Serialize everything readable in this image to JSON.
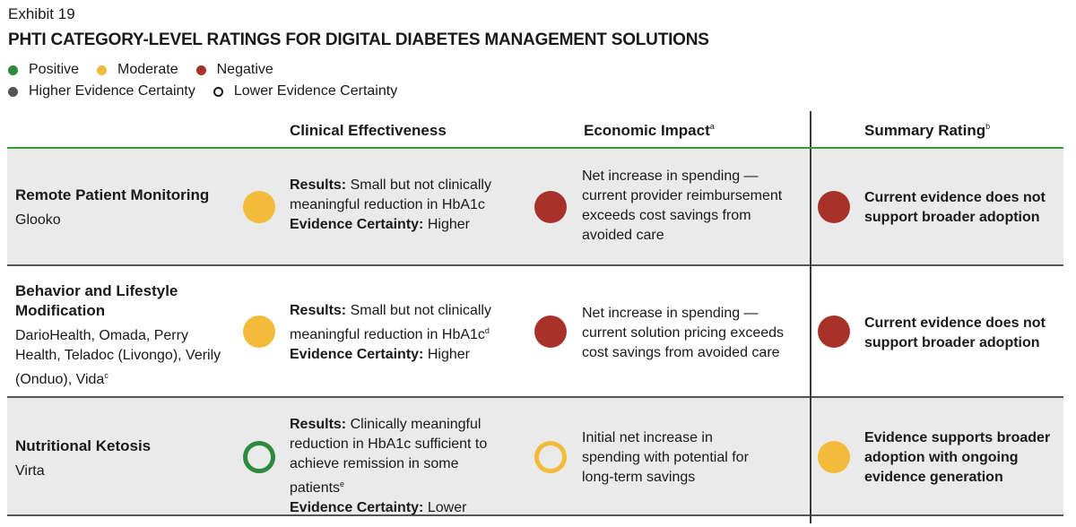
{
  "exhibit": "Exhibit 19",
  "title": "PHTI CATEGORY-LEVEL RATINGS FOR DIGITAL DIABETES MANAGEMENT SOLUTIONS",
  "legend": {
    "positive": "Positive",
    "moderate": "Moderate",
    "negative": "Negative",
    "higher": "Higher Evidence Certainty",
    "lower": "Lower Evidence Certainty"
  },
  "colors": {
    "positive": "#2e8b3e",
    "moderate": "#f2bc3a",
    "negative": "#a8322a",
    "higher": "#555555",
    "row_bg": "#eaeaea"
  },
  "headers": {
    "clinical": "Clinical Effectiveness",
    "economic": "Economic Impact",
    "economic_sup": "a",
    "summary": "Summary Rating",
    "summary_sup": "b"
  },
  "labels": {
    "results": "Results:",
    "certainty": "Evidence Certainty:"
  },
  "rows": [
    {
      "category": "Remote Patient Monitoring",
      "vendors": "Glooko",
      "clinical_rating": "Moderate",
      "clinical_results": "Small but not clinically meaningful reduction in HbA1c",
      "certainty": "Higher",
      "economic_rating": "Negative",
      "economic_text": "Net increase in spending — current provider reimbursement exceeds cost savings from avoided care",
      "summary_rating": "Negative",
      "summary_text": "Current evidence does not support broader adoption"
    },
    {
      "category": "Behavior and Lifestyle Modification",
      "vendors": "DarioHealth, Omada, Perry Health, Teladoc (Livongo), Verily (Onduo), Vida",
      "vendors_sup": "c",
      "clinical_rating": "Moderate",
      "clinical_results": "Small but not clinically meaningful reduction in HbA1c",
      "clinical_sup": "d",
      "certainty": "Higher",
      "economic_rating": "Negative",
      "economic_text": "Net increase in spending — current solution pricing exceeds cost savings from avoided care",
      "summary_rating": "Negative",
      "summary_text": "Current evidence does not support broader adoption"
    },
    {
      "category": "Nutritional Ketosis",
      "vendors": "Virta",
      "clinical_rating": "Positive",
      "clinical_results": "Clinically meaningful reduction in HbA1c sufficient to achieve remission in some patients",
      "clinical_sup": "e",
      "certainty": "Lower",
      "economic_rating": "Moderate",
      "economic_text": "Initial net increase in spending with potential for long-term savings",
      "summary_rating": "Moderate",
      "summary_text": "Evidence supports broader adoption with ongoing evidence generation"
    }
  ]
}
